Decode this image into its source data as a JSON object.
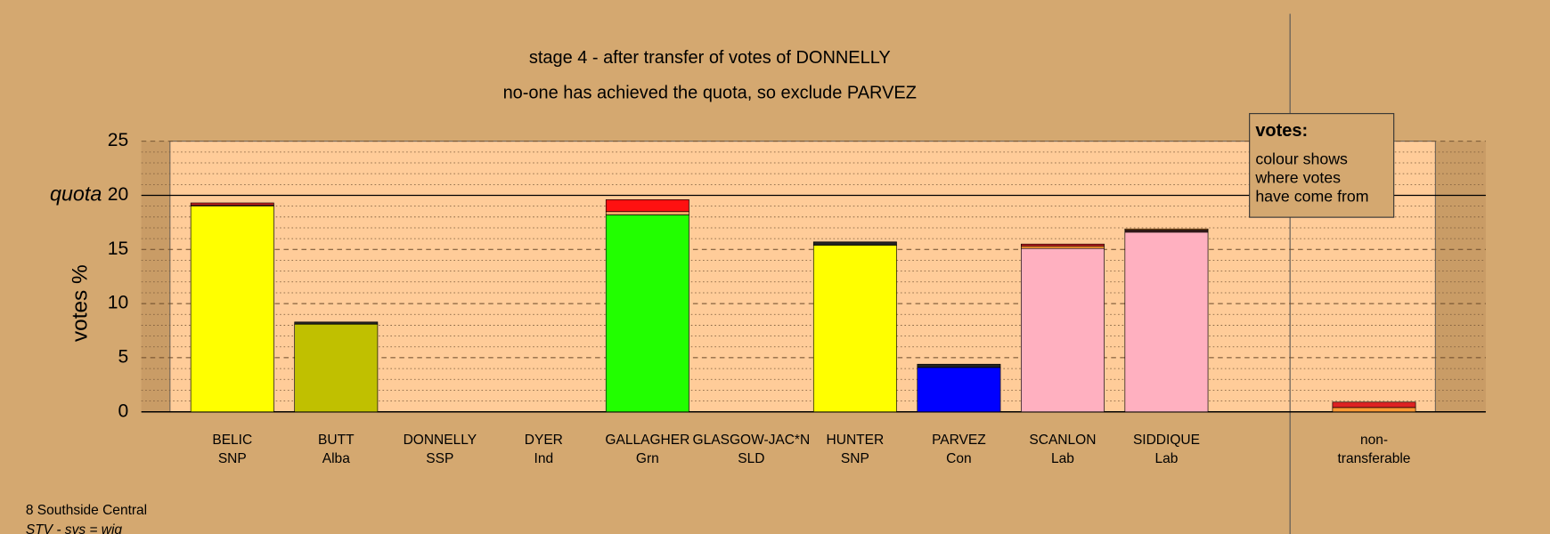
{
  "chart_data": {
    "type": "stacked-bar",
    "title": "stage 4 - after transfer of votes of DONNELLY",
    "subtitle": "no-one has achieved the quota, so exclude PARVEZ",
    "y_label": "votes %",
    "quota": {
      "value": 20,
      "label": "quota"
    },
    "ylim": [
      0,
      25
    ],
    "yticks": [
      0,
      5,
      10,
      15,
      20,
      25
    ],
    "minor_yticks": [
      1,
      2,
      3,
      4,
      6,
      7,
      8,
      9,
      11,
      12,
      13,
      14,
      16,
      17,
      18,
      19,
      21,
      22,
      23,
      24
    ],
    "categories": [
      "BELIC",
      "BUTT",
      "DONNELLY",
      "DYER",
      "GALLAGHER",
      "GLASGOW-JAC*N",
      "HUNTER",
      "PARVEZ",
      "SCANLON",
      "SIDDIQUE",
      "non-"
    ],
    "parties": [
      "SNP",
      "Alba",
      "SSP",
      "Ind",
      "Grn",
      "SLD",
      "SNP",
      "Con",
      "Lab",
      "Lab",
      "transferable"
    ],
    "bars": [
      {
        "segments": [
          {
            "value": 19.0,
            "color": "#ffff00"
          },
          {
            "value": 0.1,
            "color": "#ff9933"
          },
          {
            "value": 0.2,
            "color": "#cc2222"
          }
        ]
      },
      {
        "segments": [
          {
            "value": 8.1,
            "color": "#c0c000"
          },
          {
            "value": 0.2,
            "color": "#222222"
          }
        ]
      },
      {
        "segments": []
      },
      {
        "segments": []
      },
      {
        "segments": [
          {
            "value": 18.2,
            "color": "#22ff00"
          },
          {
            "value": 0.3,
            "color": "#ffaa66"
          },
          {
            "value": 1.1,
            "color": "#ff1111"
          }
        ]
      },
      {
        "segments": []
      },
      {
        "segments": [
          {
            "value": 15.4,
            "color": "#ffff00"
          },
          {
            "value": 0.3,
            "color": "#222222"
          }
        ]
      },
      {
        "segments": [
          {
            "value": 4.1,
            "color": "#0000ff"
          },
          {
            "value": 0.3,
            "color": "#222222"
          }
        ]
      },
      {
        "segments": [
          {
            "value": 15.1,
            "color": "#ffb0c0"
          },
          {
            "value": 0.2,
            "color": "#ff9933"
          },
          {
            "value": 0.2,
            "color": "#cc2222"
          }
        ]
      },
      {
        "segments": [
          {
            "value": 16.6,
            "color": "#ffb0c0"
          },
          {
            "value": 0.2,
            "color": "#442222"
          },
          {
            "value": 0.1,
            "color": "#ff9933"
          }
        ]
      },
      {
        "segments": [
          {
            "value": 0.4,
            "color": "#ff9933"
          },
          {
            "value": 0.5,
            "color": "#dd2222"
          }
        ]
      }
    ],
    "legend": {
      "title": "votes:",
      "lines": [
        "colour shows",
        "where votes",
        "have come from"
      ]
    },
    "footer": [
      "8 Southside Central",
      "STV - sys = wig"
    ]
  }
}
